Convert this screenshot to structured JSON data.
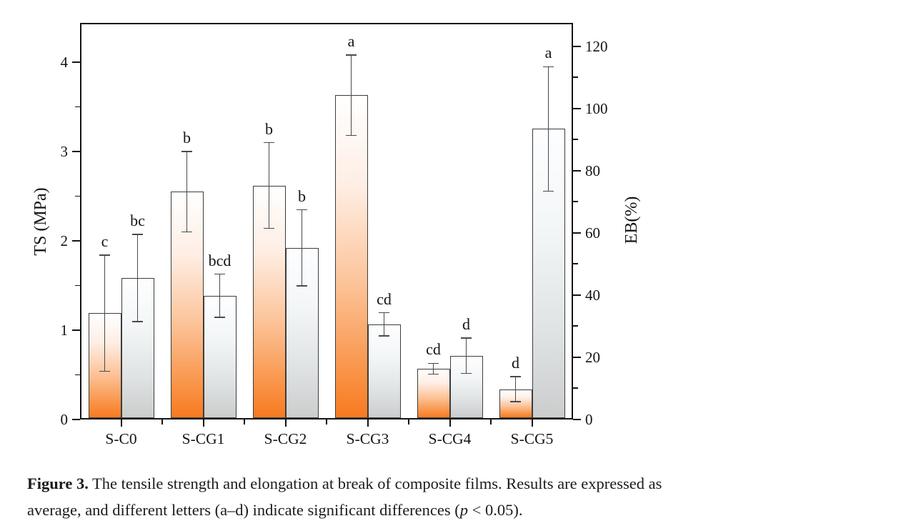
{
  "figure": {
    "legend": {
      "position": "top-left",
      "entries": [
        {
          "label": "TS",
          "swatch": "ts"
        },
        {
          "label": "EB",
          "swatch": "eb"
        }
      ]
    },
    "axes": {
      "left": {
        "label": "TS (MPa)",
        "ticks": [
          0,
          1,
          2,
          3,
          4
        ],
        "minor_ticks": [
          0.5,
          1.5,
          2.5,
          3.5
        ]
      },
      "right": {
        "label": "EB(%)",
        "ticks": [
          0,
          20,
          40,
          60,
          80,
          100,
          120
        ],
        "minor_ticks": [
          10,
          30,
          50,
          70,
          90,
          110
        ]
      },
      "bottom": {
        "categories": [
          "S-C0",
          "S-CG1",
          "S-CG2",
          "S-CG3",
          "S-CG4",
          "S-CG5"
        ]
      }
    },
    "colors": {
      "ts_gradient_top": "#ffffff",
      "ts_gradient_bottom": "#f87a20",
      "eb_gradient_top": "#fdfeff",
      "eb_gradient_bottom": "#cbcdcd",
      "axis": "#141414",
      "bar_border": "#3c3c3c",
      "error_bar": "#4a4a4a"
    }
  },
  "chart_data": {
    "type": "bar",
    "title": "",
    "xlabel": "",
    "ylabel_left": "TS (MPa)",
    "ylabel_right": "EB(%)",
    "ylim_left": [
      0,
      4.44
    ],
    "ylim_right": [
      0,
      127.5
    ],
    "grid": false,
    "legend_position": "top-left",
    "categories": [
      "S-C0",
      "S-CG1",
      "S-CG2",
      "S-CG3",
      "S-CG4",
      "S-CG5"
    ],
    "series": [
      {
        "name": "TS",
        "axis": "left",
        "unit": "MPa",
        "values": [
          1.19,
          2.55,
          2.62,
          3.63,
          0.57,
          0.34
        ],
        "errors": [
          0.65,
          0.45,
          0.48,
          0.45,
          0.06,
          0.14
        ],
        "letters": [
          "c",
          "b",
          "b",
          "a",
          "cd",
          "d"
        ]
      },
      {
        "name": "EB",
        "axis": "right",
        "unit": "%",
        "values": [
          45.5,
          39.8,
          55.2,
          30.6,
          20.5,
          93.4
        ],
        "errors": [
          14.0,
          6.9,
          12.2,
          3.7,
          5.7,
          20.0
        ],
        "letters": [
          "bc",
          "bcd",
          "b",
          "cd",
          "d",
          "a"
        ]
      }
    ]
  },
  "caption": {
    "label": "Figure 3.",
    "line1_rest": " The tensile strength and elongation at break of composite films. Results are expressed as",
    "line2_before_p": "average, and different letters (a–d) indicate significant differences (",
    "p_symbol": "p",
    "line2_after_p": " < 0.05)."
  }
}
